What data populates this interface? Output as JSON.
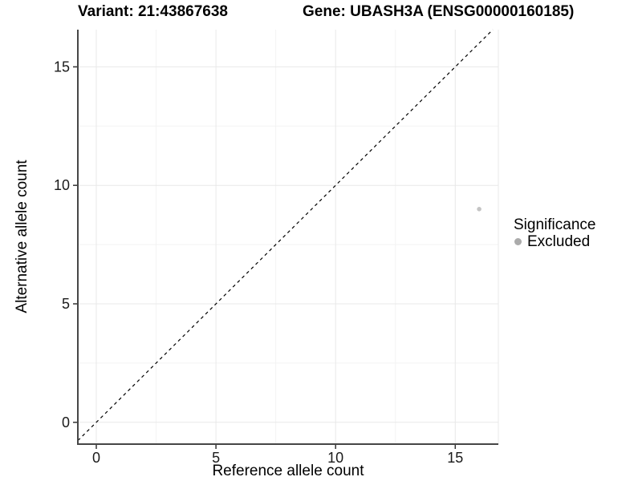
{
  "chart_data": {
    "type": "scatter",
    "titles": {
      "left": "Variant: 21:43867638",
      "right": "Gene: UBASH3A (ENSG00000160185)"
    },
    "xlabel": "Reference allele count",
    "ylabel": "Alternative allele count",
    "xlim": [
      -0.77,
      16.8
    ],
    "ylim": [
      -0.92,
      16.57
    ],
    "x_ticks": [
      0,
      5,
      10,
      15
    ],
    "y_ticks": [
      0,
      5,
      10,
      15
    ],
    "x_minor": [
      2.5,
      7.5,
      12.5
    ],
    "y_minor": [
      2.5,
      7.5,
      12.5
    ],
    "grid": {
      "enabled": true,
      "major_color": "#e8e8e8",
      "minor_color": "#f3f3f3"
    },
    "axis": {
      "line_color": "#464646",
      "tick_color": "#333333",
      "tick_label_color": "#1a1a1a"
    },
    "reference_line": {
      "type": "identity",
      "slope": 1,
      "intercept": 0,
      "style": "dashed",
      "color": "#000000"
    },
    "series": [
      {
        "name": "Excluded",
        "color": "#c4c4c4",
        "points": [
          {
            "x": 16,
            "y": 9
          }
        ]
      }
    ],
    "legend": {
      "title": "Significance",
      "position": "right",
      "entries": [
        {
          "label": "Excluded",
          "color": "#ababab"
        }
      ]
    }
  }
}
